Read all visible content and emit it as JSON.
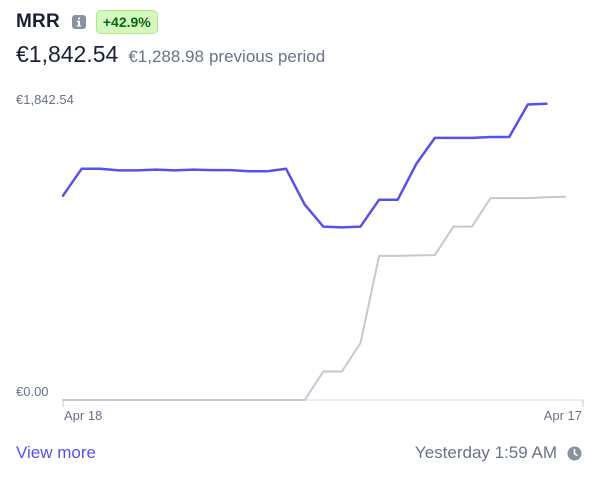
{
  "header": {
    "title": "MRR",
    "info_icon": "info-icon",
    "change_badge": "+42.9%",
    "current_value": "€1,842.54",
    "previous_value": "€1,288.98",
    "previous_suffix": "previous period"
  },
  "footer": {
    "view_more": "View more",
    "updated": "Yesterday 1:59 AM",
    "clock_icon": "clock-icon"
  },
  "colors": {
    "current_series": "#5850ec",
    "previous_series": "#c1c9d2",
    "badge_bg": "#d7f7c2",
    "badge_text": "#05690d",
    "link": "#5850ec"
  },
  "chart_data": {
    "type": "line",
    "y_tick_labels": [
      "€1,842.54",
      "€0.00"
    ],
    "ylim": [
      0,
      1842.54
    ],
    "x_tick_labels": [
      "Apr 18",
      "Apr 17"
    ],
    "grid": false,
    "series": [
      {
        "name": "current",
        "values": [
          1255,
          1420,
          1420,
          1410,
          1410,
          1415,
          1410,
          1415,
          1412,
          1412,
          1405,
          1405,
          1420,
          1200,
          1065,
          1060,
          1065,
          1230,
          1230,
          1450,
          1610,
          1610,
          1610,
          1615,
          1615,
          1815,
          1820
        ]
      },
      {
        "name": "previous",
        "values": [
          0,
          0,
          0,
          0,
          0,
          0,
          0,
          0,
          0,
          0,
          0,
          0,
          0,
          0,
          175,
          175,
          350,
          885,
          885,
          888,
          890,
          1065,
          1065,
          1240,
          1240,
          1240,
          1245,
          1248
        ]
      }
    ]
  }
}
